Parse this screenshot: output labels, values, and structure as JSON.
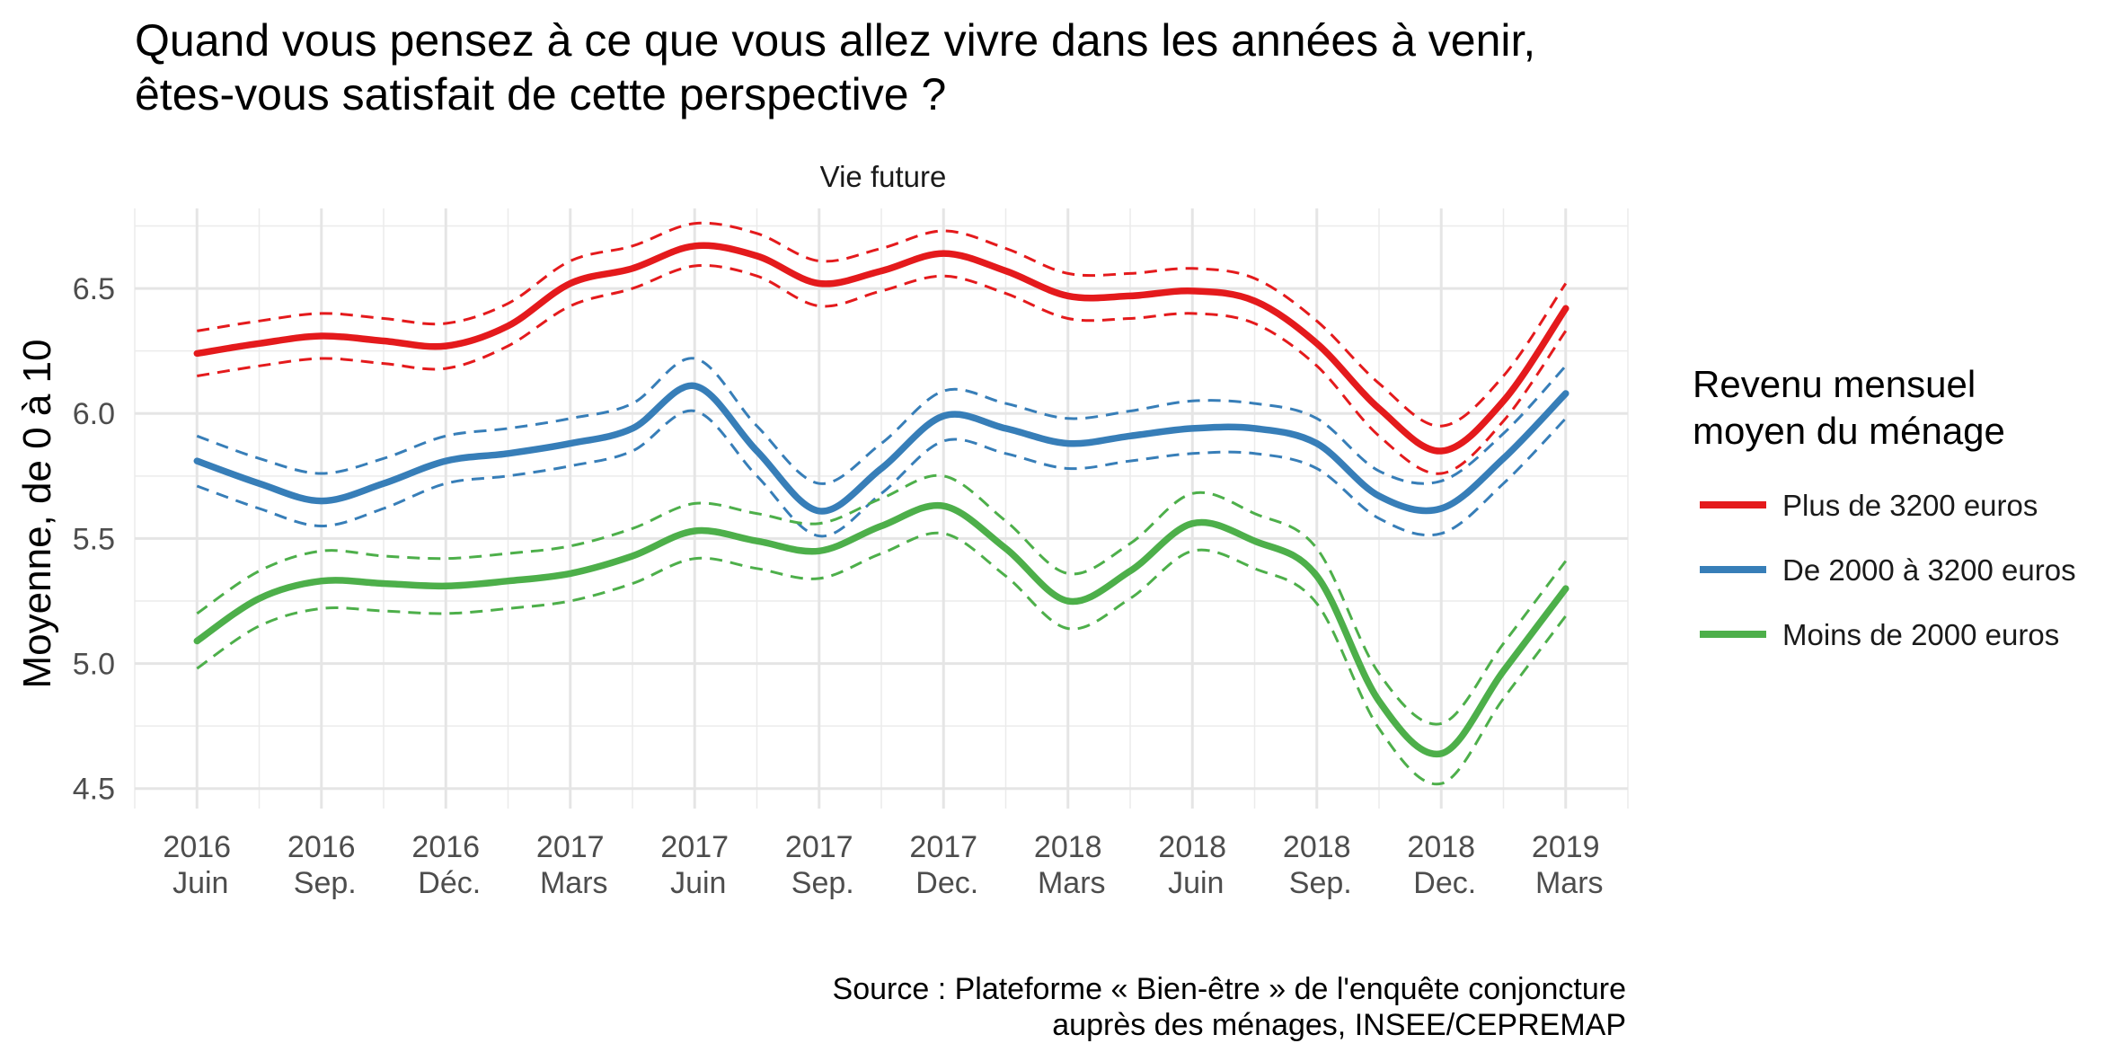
{
  "title_lines": [
    "Quand vous pensez à ce que vous allez vivre dans les années à venir,",
    " êtes-vous satisfait de cette perspective ?"
  ],
  "caption_lines": [
    "Source : Plateforme « Bien-être » de l'enquête conjoncture",
    "auprès des ménages, INSEE/CEPREMAP"
  ],
  "chart_data": {
    "type": "line",
    "title": "Quand vous pensez à ce que vous allez vivre dans les années à venir, êtes-vous satisfait de cette perspective ?",
    "subtitle": "Vie future",
    "xlabel": "",
    "ylabel": "Moyenne, de 0 à 10",
    "ylim": [
      4.42,
      6.82
    ],
    "xlim": [
      -0.5,
      11.5
    ],
    "y_ticks": [
      4.5,
      5.0,
      5.5,
      6.0,
      6.5
    ],
    "y_tick_labels": [
      "4.5",
      "5.0",
      "5.5",
      "6.0",
      "6.5"
    ],
    "x_ticks": [
      {
        "x": 0,
        "year": "2016",
        "month": "Juin"
      },
      {
        "x": 1,
        "year": "2016",
        "month": "Sep."
      },
      {
        "x": 2,
        "year": "2016",
        "month": "Déc."
      },
      {
        "x": 3,
        "year": "2017",
        "month": "Mars"
      },
      {
        "x": 4,
        "year": "2017",
        "month": "Juin"
      },
      {
        "x": 5,
        "year": "2017",
        "month": "Sep."
      },
      {
        "x": 6,
        "year": "2017",
        "month": "Dec."
      },
      {
        "x": 7,
        "year": "2018",
        "month": "Mars"
      },
      {
        "x": 8,
        "year": "2018",
        "month": "Juin"
      },
      {
        "x": 9,
        "year": "2018",
        "month": "Sep."
      },
      {
        "x": 10,
        "year": "2018",
        "month": "Dec."
      },
      {
        "x": 11,
        "year": "2019",
        "month": "Mars"
      }
    ],
    "grid": true,
    "legend": {
      "title_lines": [
        "Revenu mensuel",
        " moyen du ménage"
      ],
      "position": "right"
    },
    "series": [
      {
        "name": "Plus de 3200 euros",
        "color": "#e41a1c",
        "x": [
          0,
          0.5,
          1,
          1.5,
          2,
          2.5,
          3,
          3.5,
          4,
          4.5,
          5,
          5.5,
          6,
          6.5,
          7,
          7.5,
          8,
          8.5,
          9,
          9.5,
          10,
          10.5,
          11
        ],
        "y": [
          6.24,
          6.28,
          6.31,
          6.29,
          6.27,
          6.35,
          6.52,
          6.58,
          6.67,
          6.63,
          6.52,
          6.57,
          6.64,
          6.57,
          6.47,
          6.47,
          6.49,
          6.45,
          6.28,
          6.02,
          5.85,
          6.05,
          6.42
        ],
        "lower": [
          6.15,
          6.19,
          6.22,
          6.2,
          6.18,
          6.27,
          6.43,
          6.5,
          6.59,
          6.55,
          6.43,
          6.49,
          6.55,
          6.48,
          6.38,
          6.38,
          6.4,
          6.36,
          6.19,
          5.91,
          5.76,
          5.97,
          6.33
        ],
        "upper": [
          6.33,
          6.37,
          6.4,
          6.38,
          6.36,
          6.44,
          6.61,
          6.67,
          6.76,
          6.72,
          6.61,
          6.66,
          6.73,
          6.66,
          6.56,
          6.56,
          6.58,
          6.54,
          6.37,
          6.12,
          5.95,
          6.15,
          6.52
        ]
      },
      {
        "name": "De 2000 à 3200 euros",
        "color": "#377eb8",
        "x": [
          0,
          0.5,
          1,
          1.5,
          2,
          2.5,
          3,
          3.5,
          4,
          4.5,
          5,
          5.5,
          6,
          6.5,
          7,
          7.5,
          8,
          8.5,
          9,
          9.5,
          10,
          10.5,
          11
        ],
        "y": [
          5.81,
          5.72,
          5.65,
          5.72,
          5.81,
          5.84,
          5.88,
          5.94,
          6.11,
          5.85,
          5.61,
          5.78,
          5.99,
          5.94,
          5.88,
          5.91,
          5.94,
          5.94,
          5.88,
          5.67,
          5.62,
          5.82,
          6.08
        ],
        "lower": [
          5.71,
          5.62,
          5.55,
          5.62,
          5.72,
          5.75,
          5.79,
          5.85,
          6.01,
          5.75,
          5.51,
          5.68,
          5.89,
          5.84,
          5.78,
          5.81,
          5.84,
          5.84,
          5.78,
          5.58,
          5.52,
          5.72,
          5.98
        ],
        "upper": [
          5.91,
          5.82,
          5.76,
          5.82,
          5.91,
          5.94,
          5.98,
          6.04,
          6.22,
          5.95,
          5.72,
          5.88,
          6.09,
          6.04,
          5.98,
          6.01,
          6.05,
          6.04,
          5.98,
          5.77,
          5.73,
          5.92,
          6.19
        ]
      },
      {
        "name": "Moins de 2000 euros",
        "color": "#4daf4a",
        "x": [
          0,
          0.5,
          1,
          1.5,
          2,
          2.5,
          3,
          3.5,
          4,
          4.5,
          5,
          5.5,
          6,
          6.5,
          7,
          7.5,
          8,
          8.5,
          9,
          9.5,
          10,
          10.5,
          11
        ],
        "y": [
          5.09,
          5.26,
          5.33,
          5.32,
          5.31,
          5.33,
          5.36,
          5.43,
          5.53,
          5.49,
          5.45,
          5.55,
          5.63,
          5.46,
          5.25,
          5.37,
          5.56,
          5.49,
          5.35,
          4.85,
          4.64,
          4.97,
          5.3
        ],
        "lower": [
          4.98,
          5.15,
          5.22,
          5.21,
          5.2,
          5.22,
          5.25,
          5.32,
          5.42,
          5.38,
          5.34,
          5.44,
          5.52,
          5.35,
          5.14,
          5.26,
          5.45,
          5.38,
          5.24,
          4.74,
          4.52,
          4.86,
          5.19
        ],
        "upper": [
          5.2,
          5.37,
          5.45,
          5.43,
          5.42,
          5.44,
          5.47,
          5.54,
          5.64,
          5.6,
          5.56,
          5.66,
          5.75,
          5.57,
          5.36,
          5.48,
          5.68,
          5.6,
          5.46,
          4.96,
          4.76,
          5.08,
          5.41
        ]
      }
    ]
  }
}
